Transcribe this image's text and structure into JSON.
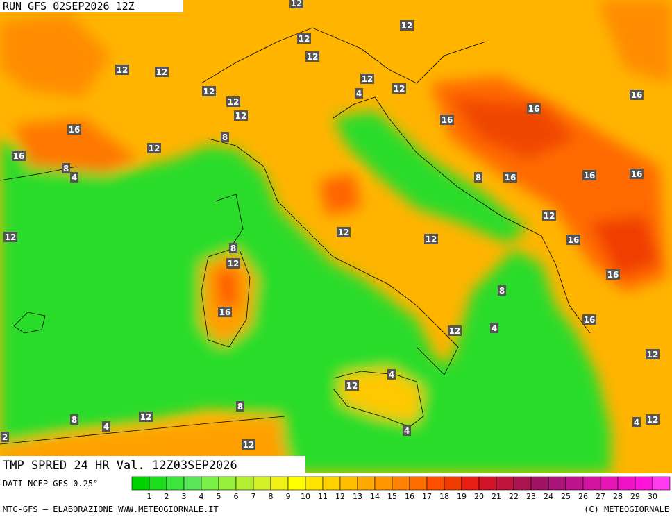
{
  "header": {
    "run": "RUN GFS 02SEP2026 12Z",
    "title": "TMP SPRED 24 HR Val. 12Z03SEP2026",
    "source": "DATI NCEP GFS 0.25°"
  },
  "footer": {
    "left": "MTG-GFS – ELABORAZIONE WWW.METEOGIORNALE.IT",
    "right": "(C) METEOGIORNALE"
  },
  "contour_labels": [
    12,
    12,
    12,
    12,
    12,
    12,
    12,
    12,
    12,
    4,
    12,
    12,
    16,
    16,
    16,
    16,
    8,
    12,
    16,
    8,
    4,
    8,
    16,
    16,
    16,
    12,
    12,
    12,
    12,
    16,
    8,
    12,
    16,
    8,
    16,
    16,
    12,
    4,
    12,
    4,
    12,
    8,
    8,
    12,
    4,
    4,
    12,
    4,
    12,
    2
  ],
  "colorbar": {
    "labels": [
      1,
      2,
      3,
      4,
      5,
      6,
      7,
      8,
      9,
      10,
      11,
      12,
      13,
      14,
      15,
      16,
      17,
      18,
      19,
      20,
      21,
      22,
      23,
      24,
      25,
      26,
      27,
      28,
      29,
      30
    ],
    "colors": [
      "#00d200",
      "#1edc1e",
      "#3ce63c",
      "#5ae65a",
      "#78f046",
      "#96f03c",
      "#b4f032",
      "#d2f028",
      "#f0f014",
      "#ffff00",
      "#ffe600",
      "#ffd200",
      "#ffbe00",
      "#ffaa00",
      "#ff9600",
      "#ff8200",
      "#ff6e00",
      "#ff5000",
      "#f03c00",
      "#e61e14",
      "#d21428",
      "#be143c",
      "#aa1450",
      "#a01464",
      "#aa1478",
      "#be148c",
      "#d214a0",
      "#e614b4",
      "#f014c8",
      "#ff14dc",
      "#ff3cf0"
    ]
  }
}
